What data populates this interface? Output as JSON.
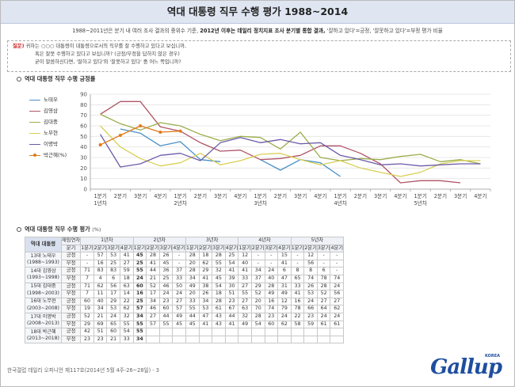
{
  "header": {
    "title": "역대 대통령 직무 수행 평가 1988~2014",
    "subtitle_plain": "1988~2011년은 분기 내 여러 조사 결과의 중위수 기준,",
    "subtitle_bold": "2012년 이후는 데일리 정치지표 조사 분기별 통합 결과,",
    "subtitle_tail": "'잘하고 있다'=긍정, '잘못하고 있다'=부정 평가 비율"
  },
  "question": {
    "tag": "질문)",
    "line1": "귀하는 ○○○ 대통령이 대통령으로서의 직무를 잘 수행하고 있다고 보십니까,",
    "line2": "혹은 잘못 수행하고 있다고 보십니까? (긍정/부정을 답하지 않은 경우)",
    "line3": "굳이 말씀하신다면, '잘하고 있다'와 '잘못하고 있다' 중 어느 쪽입니까?"
  },
  "sections": {
    "chart_title": "역대 대통령 직무 수행 긍정률",
    "table_title": "역대 대통령 직무 수행 평가",
    "table_unit": "(%)"
  },
  "chart_data": [
    {
      "type": "line",
      "title": "역대 대통령 직무 수행 긍정률",
      "xlabel": "",
      "ylabel": "",
      "ylim": [
        0,
        90
      ],
      "y_ticks": [
        0,
        10,
        20,
        30,
        40,
        50,
        60,
        70,
        80,
        90
      ],
      "grid": true,
      "legend": "top-left",
      "categories": [
        "1분기 1년차",
        "2분기",
        "3분기",
        "4분기",
        "1분기 2년차",
        "2분기",
        "3분기",
        "4분기",
        "1분기 3년차",
        "2분기",
        "3분기",
        "4분기",
        "1분기 4년차",
        "2분기",
        "3분기",
        "4분기",
        "1분기 5년차",
        "2분기",
        "3분기",
        "4분기"
      ],
      "x_tick_line1": [
        "1분기",
        "2분기",
        "3분기",
        "4분기",
        "1분기",
        "2분기",
        "3분기",
        "4분기",
        "1분기",
        "2분기",
        "3분기",
        "4분기",
        "1분기",
        "2분기",
        "3분기",
        "4분기",
        "1분기",
        "2분기",
        "3분기",
        "4분기"
      ],
      "x_tick_line2": [
        "1년차",
        "",
        "",
        "",
        "2년차",
        "",
        "",
        "",
        "3년차",
        "",
        "",
        "",
        "4년차",
        "",
        "",
        "",
        "5년차",
        "",
        "",
        ""
      ],
      "series": [
        {
          "name": "노태우",
          "color": "#4a90c8",
          "marker": false,
          "values": [
            null,
            57,
            53,
            41,
            45,
            28,
            26,
            null,
            28,
            18,
            28,
            25,
            12,
            null,
            null,
            15,
            null,
            12,
            null,
            null
          ]
        },
        {
          "name": "김영삼",
          "color": "#b05566",
          "marker": false,
          "values": [
            71,
            83,
            83,
            59,
            55,
            44,
            36,
            37,
            28,
            29,
            32,
            41,
            41,
            34,
            24,
            6,
            8,
            8,
            6,
            null
          ]
        },
        {
          "name": "김대중",
          "color": "#9aae4a",
          "marker": false,
          "values": [
            71,
            62,
            56,
            63,
            60,
            52,
            46,
            50,
            49,
            38,
            54,
            30,
            27,
            29,
            28,
            31,
            33,
            26,
            28,
            24
          ]
        },
        {
          "name": "노무현",
          "color": "#d9cf55",
          "marker": false,
          "values": [
            60,
            40,
            29,
            22,
            25,
            34,
            23,
            27,
            33,
            34,
            28,
            23,
            27,
            20,
            16,
            12,
            16,
            24,
            27,
            27
          ]
        },
        {
          "name": "이명박",
          "color": "#6d5aa8",
          "marker": false,
          "values": [
            52,
            21,
            24,
            32,
            34,
            27,
            44,
            49,
            44,
            47,
            43,
            44,
            32,
            28,
            23,
            24,
            22,
            23,
            24,
            24
          ]
        },
        {
          "name": "박근혜(%)",
          "color": "#e07b1a",
          "marker": true,
          "values": [
            42,
            51,
            60,
            54,
            55,
            null,
            null,
            null,
            null,
            null,
            null,
            null,
            null,
            null,
            null,
            null,
            null,
            null,
            null,
            null
          ]
        }
      ]
    },
    {
      "type": "table",
      "title": "역대 대통령 직무 수행 평가",
      "unit": "(%)",
      "corner_label": "역대 대통령",
      "year_header": "재임연차",
      "quarter_header": "분기",
      "years": [
        "1년차",
        "2년차",
        "3년차",
        "4년차",
        "5년차"
      ],
      "quarters": [
        "1분기",
        "2분기",
        "3분기",
        "4분기"
      ],
      "kinds": [
        "긍정",
        "부정"
      ],
      "rows": [
        {
          "name": "13대 노태우",
          "period": "(1988~1993)",
          "pos": [
            "-",
            "57",
            "53",
            "41",
            "45",
            "28",
            "26",
            "-",
            "28",
            "18",
            "28",
            "25",
            "12",
            "-",
            "-",
            "15",
            "-",
            "12",
            "-",
            "-"
          ],
          "neg": [
            "-",
            "16",
            "25",
            "27",
            "25",
            "41",
            "45",
            "-",
            "20",
            "62",
            "55",
            "54",
            "40",
            "-",
            "-",
            "41",
            "-",
            "56",
            "-",
            "-"
          ]
        },
        {
          "name": "14대 김영삼",
          "period": "(1993~1998)",
          "pos": [
            "71",
            "83",
            "83",
            "59",
            "55",
            "44",
            "36",
            "37",
            "28",
            "29",
            "32",
            "41",
            "41",
            "34",
            "24",
            "6",
            "8",
            "8",
            "6",
            "-"
          ],
          "neg": [
            "7",
            "4",
            "6",
            "18",
            "24",
            "21",
            "25",
            "33",
            "34",
            "41",
            "45",
            "39",
            "33",
            "37",
            "40",
            "47",
            "65",
            "74",
            "78",
            "74"
          ]
        },
        {
          "name": "15대 김대중",
          "period": "(1998~2003)",
          "pos": [
            "71",
            "62",
            "56",
            "63",
            "60",
            "52",
            "46",
            "50",
            "49",
            "38",
            "54",
            "30",
            "27",
            "29",
            "28",
            "31",
            "33",
            "26",
            "28",
            "24"
          ],
          "neg": [
            "7",
            "11",
            "17",
            "14",
            "16",
            "17",
            "24",
            "24",
            "20",
            "26",
            "18",
            "51",
            "55",
            "52",
            "49",
            "49",
            "41",
            "53",
            "52",
            "56"
          ]
        },
        {
          "name": "16대 노무현",
          "period": "(2003~2008)",
          "pos": [
            "60",
            "40",
            "29",
            "22",
            "25",
            "34",
            "23",
            "27",
            "33",
            "34",
            "28",
            "23",
            "27",
            "20",
            "16",
            "12",
            "16",
            "24",
            "27",
            "27"
          ],
          "neg": [
            "19",
            "34",
            "53",
            "62",
            "57",
            "46",
            "60",
            "57",
            "55",
            "53",
            "61",
            "67",
            "63",
            "70",
            "74",
            "79",
            "78",
            "66",
            "64",
            "62"
          ]
        },
        {
          "name": "17대 이명박",
          "period": "(2008~2013)",
          "pos": [
            "52",
            "21",
            "24",
            "32",
            "34",
            "27",
            "44",
            "49",
            "44",
            "47",
            "43",
            "44",
            "32",
            "28",
            "23",
            "24",
            "22",
            "23",
            "24",
            "24"
          ],
          "neg": [
            "29",
            "69",
            "65",
            "55",
            "55",
            "57",
            "55",
            "45",
            "45",
            "41",
            "43",
            "41",
            "49",
            "54",
            "60",
            "62",
            "58",
            "59",
            "61",
            "61"
          ]
        },
        {
          "name": "18대 박근혜",
          "period": "(2013~2018)",
          "pos": [
            "42",
            "51",
            "60",
            "54",
            "55",
            "",
            "",
            "",
            "",
            "",
            "",
            "",
            "",
            "",
            "",
            "",
            "",
            "",
            "",
            ""
          ],
          "neg": [
            "23",
            "23",
            "21",
            "33",
            "34",
            "",
            "",
            "",
            "",
            "",
            "",
            "",
            "",
            "",
            "",
            "",
            "",
            "",
            "",
            ""
          ]
        }
      ]
    }
  ],
  "footer": {
    "source": "한국갤럽 데일리 오피니언 제117호(2014년 5월 4주-26~28일) - 3",
    "logo": "Gallup",
    "logo_korea": "KOREA"
  }
}
